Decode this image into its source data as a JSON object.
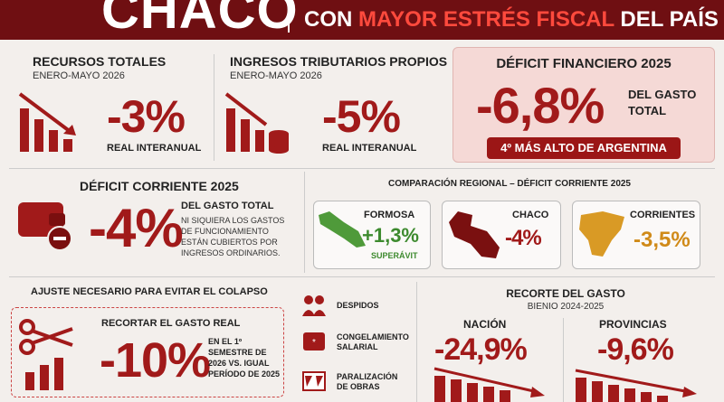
{
  "header": {
    "title": "CHACO",
    "subtitle_lead": "CON",
    "subtitle_highlight": "MAYOR ESTRÉS FISCAL",
    "subtitle_tail": "DEL PAÍS"
  },
  "recursos_totales": {
    "title": "RECURSOS TOTALES",
    "period": "ENERO-MAYO 2026",
    "value": "-3%",
    "note": "REAL INTERANUAL"
  },
  "ingresos_tributarios": {
    "title": "INGRESOS TRIBUTARIOS PROPIOS",
    "period": "ENERO-MAYO 2026",
    "value": "-5%",
    "note": "REAL INTERANUAL"
  },
  "deficit_financiero": {
    "title": "DÉFICIT FINANCIERO 2025",
    "value": "-6,8%",
    "note": "DEL GASTO TOTAL",
    "badge": "4º MÁS ALTO DE ARGENTINA"
  },
  "deficit_corriente": {
    "title": "DÉFICIT CORRIENTE 2025",
    "value": "-4%",
    "note": "DEL GASTO TOTAL",
    "detail": "NI SIQUIERA LOS GASTOS DE FUNCIONAMIENTO ESTÁN CUBIERTOS POR INGRESOS ORDINARIOS."
  },
  "comparacion": {
    "title": "COMPARACIÓN REGIONAL – DÉFICIT CORRIENTE 2025",
    "provinces": [
      {
        "name": "FORMOSA",
        "value": "+1,3%",
        "note": "SUPERÁVIT"
      },
      {
        "name": "CHACO",
        "value": "-4%"
      },
      {
        "name": "CORRIENTES",
        "value": "-3,5%"
      }
    ]
  },
  "ajuste": {
    "title": "AJUSTE NECESARIO PARA EVITAR EL COLAPSO",
    "action": "RECORTAR EL GASTO REAL",
    "value": "-10%",
    "note": "EN EL 1º SEMESTRE DE 2026 VS. IGUAL PERÍODO DE 2025"
  },
  "medidas": [
    "DESPIDOS",
    "CONGELAMIENTO SALARIAL",
    "PARALIZACIÓN DE OBRAS"
  ],
  "recorte": {
    "title": "RECORTE DEL GASTO",
    "period": "BIENIO 2024-2025",
    "items": [
      {
        "name": "NACIÓN",
        "value": "-24,9%"
      },
      {
        "name": "PROVINCIAS",
        "value": "-9,6%"
      }
    ]
  }
}
